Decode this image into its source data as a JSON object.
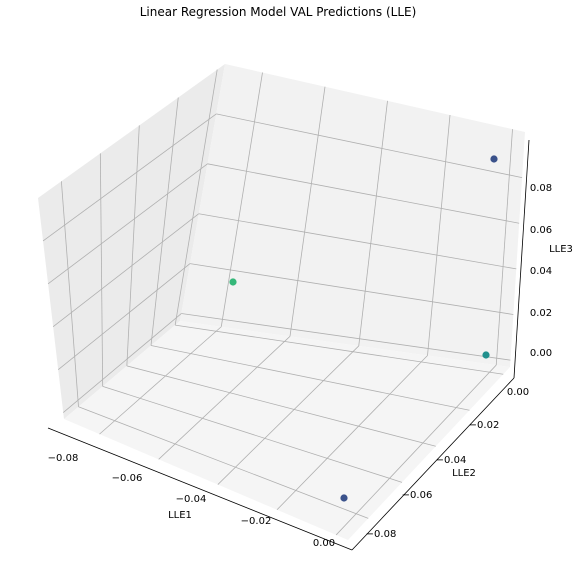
{
  "colors": {
    "pane_left": "#ebebeb",
    "pane_right": "#f2f2f2",
    "pane_floor": "#f5f5f5",
    "grid": "#b0b0b0",
    "axis_line": "#000000",
    "point_dark": "#3b528b",
    "point_teal": "#21908d",
    "point_green": "#35b779"
  },
  "chart_data": {
    "type": "scatter",
    "projection": "3d",
    "title": "Linear Regression Model VAL Predictions (LLE)",
    "xlabel": "LLE1",
    "ylabel": "LLE2",
    "zlabel": "LLE3",
    "x_ticks": [
      "−0.08",
      "−0.06",
      "−0.04",
      "−0.02",
      "0.00"
    ],
    "y_ticks": [
      "−0.08",
      "−0.06",
      "−0.04",
      "−0.02",
      "0.00"
    ],
    "z_ticks": [
      "0.00",
      "0.02",
      "0.04",
      "0.06",
      "0.08"
    ],
    "grid": true,
    "colormap": "viridis",
    "points": [
      {
        "x": 0.0,
        "y": -0.088,
        "z": 0.0,
        "color": "point_dark"
      },
      {
        "x": 0.0,
        "y": 0.0,
        "z": 0.0,
        "color": "point_teal"
      },
      {
        "x": -0.088,
        "y": 0.0,
        "z": 0.0,
        "color": "point_green"
      },
      {
        "x": 0.0,
        "y": 0.0,
        "z": 0.093,
        "color": "point_dark"
      }
    ]
  }
}
